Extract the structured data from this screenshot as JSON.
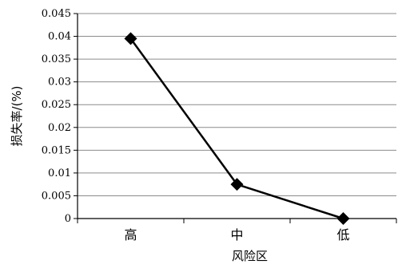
{
  "chart_data": {
    "type": "line",
    "categories": [
      "高",
      "中",
      "低"
    ],
    "series": [
      {
        "values": [
          0.0395,
          0.0075,
          0.0
        ]
      }
    ],
    "title": "",
    "xlabel": "风险区",
    "ylabel": "损失率/(%)",
    "ylim": [
      0,
      0.045
    ],
    "yticks": [
      "0",
      "0.005",
      "0.01",
      "0.015",
      "0.02",
      "0.025",
      "0.03",
      "0.035",
      "0.04",
      "0.045"
    ],
    "grid": true,
    "legend": "none",
    "line_color": "#000000",
    "marker": "diamond"
  }
}
